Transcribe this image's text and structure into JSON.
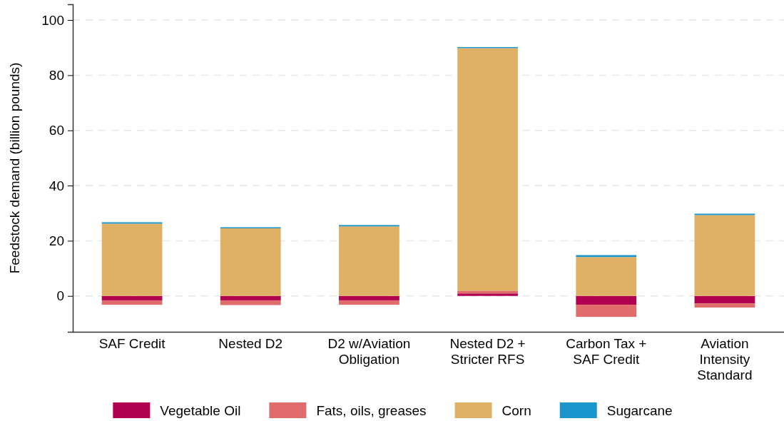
{
  "chart_data": {
    "type": "bar",
    "stacked": true,
    "ylabel": "Feedstock demand (billion pounds)",
    "categories": [
      "SAF Credit",
      "Nested D2",
      "D2 w/Aviation Obligation",
      "Nested D2 + Stricter RFS",
      "Carbon Tax + SAF Credit",
      "Aviation Intensity Standard"
    ],
    "series": [
      {
        "name": "Vegetable Oil",
        "color": "#b0004f",
        "values": [
          -1.6,
          -1.6,
          -1.6,
          0.9,
          -3.2,
          -2.7
        ]
      },
      {
        "name": "Fats, oils, greases",
        "color": "#e06c6c",
        "values": [
          -1.6,
          -1.7,
          -1.6,
          1.0,
          -4.4,
          -1.5
        ]
      },
      {
        "name": "Corn",
        "color": "#e0b065",
        "values": [
          26.2,
          24.5,
          25.2,
          87.9,
          14.1,
          29.3
        ]
      },
      {
        "name": "Sugarcane",
        "color": "#1a96cc",
        "values": [
          0.5,
          0.4,
          0.5,
          0.4,
          0.7,
          0.5
        ]
      }
    ],
    "ylim": [
      -13,
      105.7
    ],
    "yticks": [
      0,
      20,
      40,
      60,
      80,
      100
    ],
    "grid": "y",
    "legend": "bottom"
  }
}
